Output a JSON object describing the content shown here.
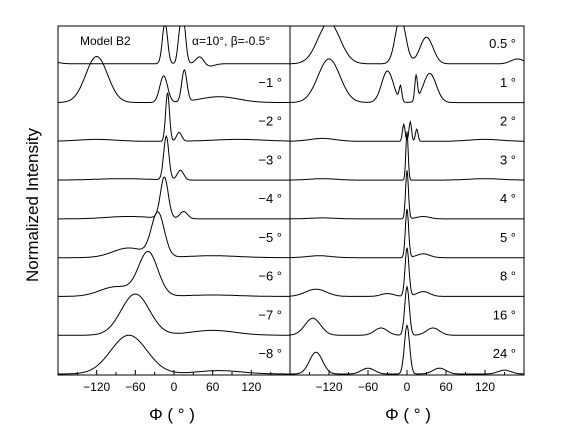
{
  "chart_data": {
    "type": "line",
    "ylabel": "Normalized Intensity",
    "model_label": "Model B2",
    "params_label": "α=10°, β=-0.5°",
    "panels": [
      {
        "xlabel": "Φ ( ° )",
        "xlim": [
          -180,
          180
        ],
        "xticks": [
          -120,
          -60,
          0,
          60,
          120
        ],
        "xtick_labels": [
          "−120",
          "−60",
          "0",
          "60",
          "120"
        ],
        "traces": [
          {
            "label": "",
            "peaks": [
              [
                -220,
                18,
                0.35
              ],
              [
                -14,
                4,
                0.85
              ],
              [
                8,
                3,
                0.35
              ],
              [
                14,
                4,
                0.95
              ],
              [
                40,
                6,
                0.15
              ],
              [
                55,
                8,
                -0.05
              ]
            ]
          },
          {
            "label": "−1 °",
            "peaks": [
              [
                -120,
                17,
                0.95
              ],
              [
                -16,
                6,
                0.55
              ],
              [
                16,
                4,
                0.65
              ],
              [
                70,
                30,
                0.12
              ]
            ]
          },
          {
            "label": "−2 °",
            "peaks": [
              [
                -10,
                3,
                1.0
              ],
              [
                8,
                4,
                0.18
              ],
              [
                -120,
                30,
                0.04
              ],
              [
                100,
                40,
                0.04
              ]
            ]
          },
          {
            "label": "−3 °",
            "peaks": [
              [
                -12,
                4,
                0.9
              ],
              [
                10,
                5,
                0.2
              ],
              [
                -80,
                40,
                0.03
              ]
            ]
          },
          {
            "label": "−4 °",
            "peaks": [
              [
                -15,
                6,
                0.85
              ],
              [
                15,
                6,
                0.15
              ],
              [
                -70,
                35,
                0.05
              ]
            ]
          },
          {
            "label": "−5 °",
            "peaks": [
              [
                -25,
                10,
                0.9
              ],
              [
                -70,
                25,
                0.2
              ],
              [
                60,
                40,
                0.04
              ]
            ]
          },
          {
            "label": "−6 °",
            "peaks": [
              [
                -40,
                15,
                0.9
              ],
              [
                -90,
                25,
                0.2
              ],
              [
                60,
                40,
                0.03
              ]
            ]
          },
          {
            "label": "−7 °",
            "peaks": [
              [
                -60,
                22,
                0.85
              ],
              [
                60,
                35,
                0.1
              ]
            ]
          },
          {
            "label": "−8 °",
            "peaks": [
              [
                -70,
                28,
                0.8
              ],
              [
                70,
                35,
                0.07
              ]
            ]
          }
        ]
      },
      {
        "xlabel": "Φ ( ° )",
        "xlim": [
          -180,
          180
        ],
        "xticks": [
          -120,
          -60,
          0,
          60,
          120
        ],
        "xtick_labels": [
          "−120",
          "−60",
          "0",
          "60",
          "120"
        ],
        "traces": [
          {
            "label": "0.5 °",
            "peaks": [
              [
                -120,
                17,
                0.85
              ],
              [
                -10,
                8,
                0.95
              ],
              [
                30,
                10,
                0.55
              ],
              [
                170,
                10,
                0.1
              ]
            ]
          },
          {
            "label": "1 °",
            "peaks": [
              [
                -120,
                17,
                0.9
              ],
              [
                -30,
                9,
                0.65
              ],
              [
                -10,
                2,
                0.3
              ],
              [
                14,
                2,
                0.5
              ],
              [
                35,
                10,
                0.6
              ]
            ]
          },
          {
            "label": "2 °",
            "peaks": [
              [
                -5,
                2,
                0.35
              ],
              [
                5,
                2,
                0.4
              ],
              [
                15,
                2,
                0.25
              ],
              [
                -130,
                20,
                0.06
              ],
              [
                120,
                25,
                0.04
              ]
            ]
          },
          {
            "label": "3 °",
            "peaks": [
              [
                0,
                1.8,
                1.0
              ],
              [
                -130,
                20,
                0.03
              ],
              [
                120,
                25,
                0.03
              ]
            ]
          },
          {
            "label": "4 °",
            "peaks": [
              [
                0,
                2.2,
                1.0
              ],
              [
                -130,
                20,
                0.02
              ],
              [
                25,
                10,
                0.05
              ]
            ]
          },
          {
            "label": "5 °",
            "peaks": [
              [
                0,
                2.5,
                1.0
              ],
              [
                -135,
                18,
                0.04
              ],
              [
                25,
                10,
                0.08
              ]
            ]
          },
          {
            "label": "8 °",
            "peaks": [
              [
                0,
                3,
                1.0
              ],
              [
                -140,
                16,
                0.15
              ],
              [
                -30,
                10,
                0.06
              ],
              [
                25,
                10,
                0.1
              ]
            ]
          },
          {
            "label": "16 °",
            "peaks": [
              [
                0,
                3.5,
                1.0
              ],
              [
                -145,
                12,
                0.35
              ],
              [
                -40,
                10,
                0.15
              ],
              [
                40,
                10,
                0.15
              ]
            ]
          },
          {
            "label": "24 °",
            "peaks": [
              [
                0,
                4,
                1.0
              ],
              [
                -140,
                10,
                0.45
              ],
              [
                -60,
                10,
                0.12
              ],
              [
                50,
                10,
                0.12
              ],
              [
                150,
                10,
                0.08
              ]
            ]
          }
        ]
      }
    ]
  }
}
